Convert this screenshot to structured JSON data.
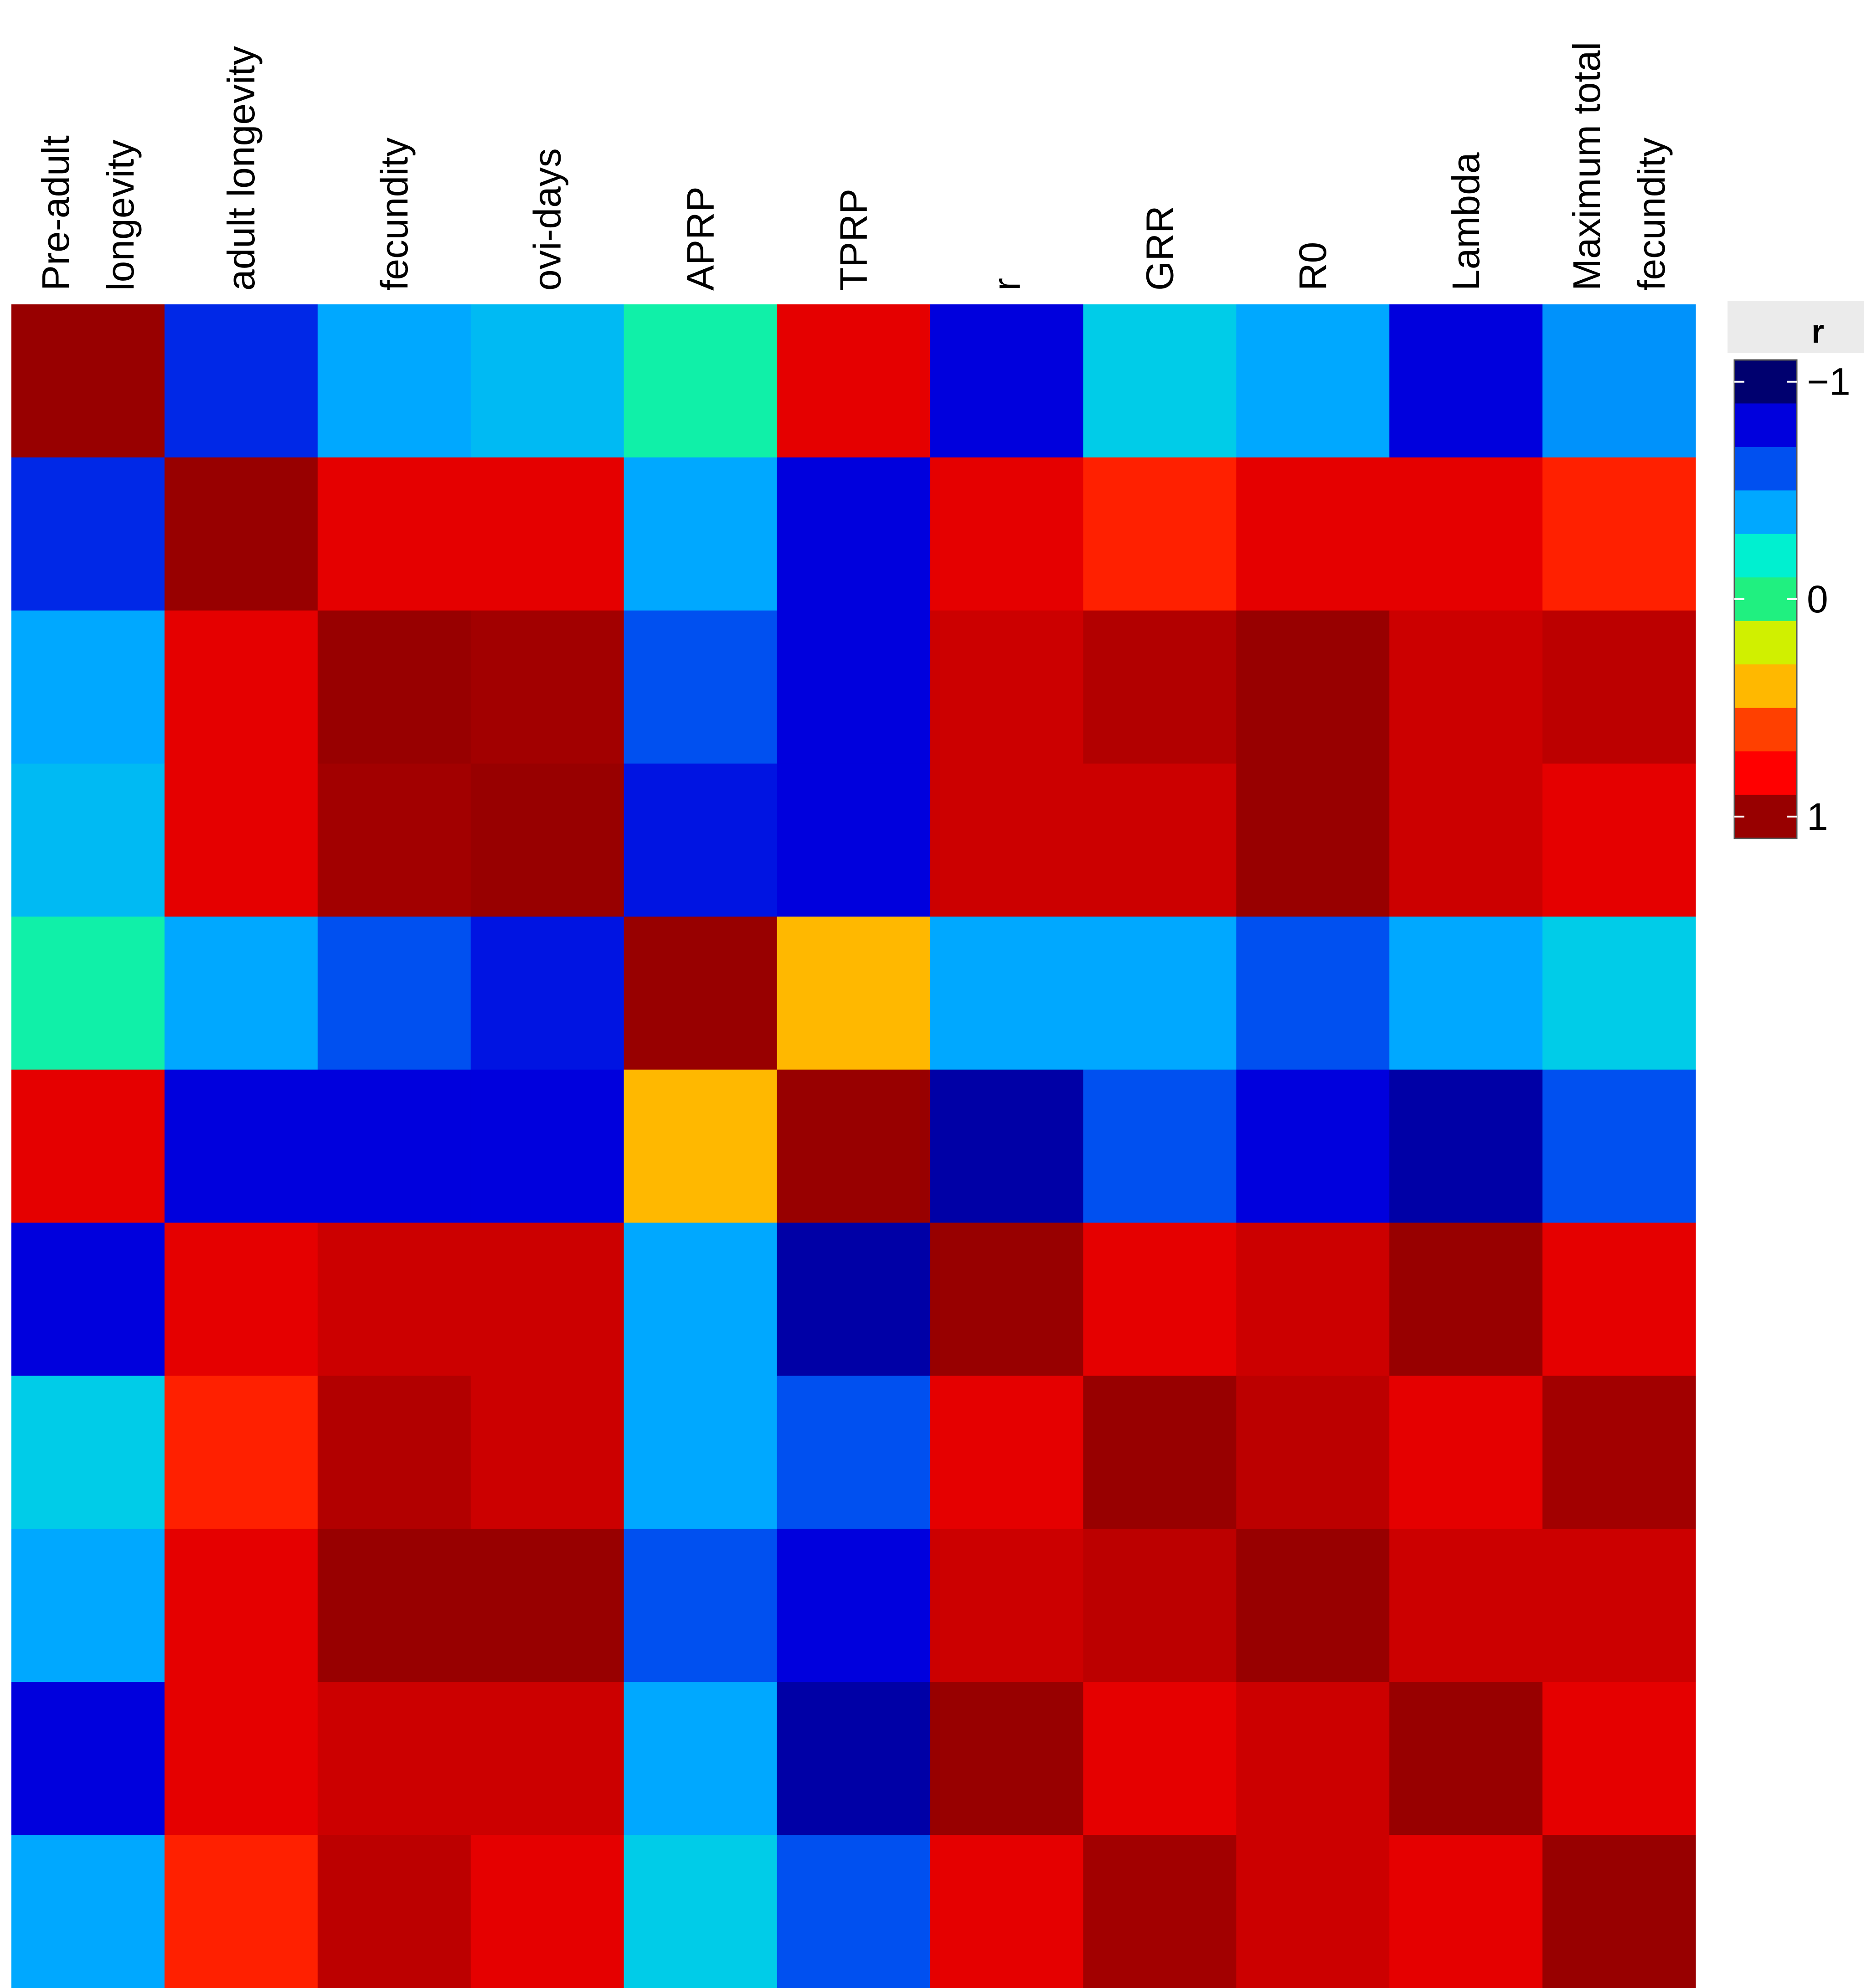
{
  "chart_data": {
    "type": "heatmap",
    "title": "",
    "xlabel": "",
    "ylabel": "",
    "columns": [
      [
        "Pre-adult",
        "longevity"
      ],
      [
        "adult longevity"
      ],
      [
        "fecundity"
      ],
      [
        "ovi-days"
      ],
      [
        "APRP"
      ],
      [
        "TPRP"
      ],
      [
        "r"
      ],
      [
        "GRR"
      ],
      [
        "R0"
      ],
      [
        "Lambda"
      ],
      [
        "Maximum total",
        "fecundity"
      ]
    ],
    "row_labels": [],
    "values": [
      [
        1.0,
        -0.7,
        -0.4,
        -0.35,
        -0.1,
        0.85,
        -0.8,
        -0.3,
        -0.4,
        -0.8,
        -0.45
      ],
      [
        -0.7,
        1.0,
        0.85,
        0.85,
        -0.4,
        -0.8,
        0.85,
        0.7,
        0.85,
        0.85,
        0.7
      ],
      [
        -0.4,
        0.85,
        1.0,
        0.98,
        -0.6,
        -0.8,
        0.9,
        0.95,
        1.0,
        0.9,
        0.93
      ],
      [
        -0.35,
        0.85,
        0.98,
        1.0,
        -0.75,
        -0.8,
        0.9,
        0.9,
        1.0,
        0.9,
        0.85
      ],
      [
        -0.1,
        -0.4,
        -0.6,
        -0.75,
        1.0,
        0.4,
        -0.4,
        -0.4,
        -0.6,
        -0.4,
        -0.3
      ],
      [
        0.85,
        -0.8,
        -0.8,
        -0.8,
        0.4,
        1.0,
        -0.9,
        -0.6,
        -0.8,
        -0.9,
        -0.6
      ],
      [
        -0.8,
        0.85,
        0.9,
        0.9,
        -0.4,
        -0.9,
        1.0,
        0.85,
        0.9,
        1.0,
        0.85
      ],
      [
        -0.3,
        0.7,
        0.95,
        0.9,
        -0.4,
        -0.6,
        0.85,
        1.0,
        0.93,
        0.85,
        0.98
      ],
      [
        -0.4,
        0.85,
        1.0,
        1.0,
        -0.6,
        -0.8,
        0.9,
        0.93,
        1.0,
        0.9,
        0.9
      ],
      [
        -0.8,
        0.85,
        0.9,
        0.9,
        -0.4,
        -0.9,
        1.0,
        0.85,
        0.9,
        1.0,
        0.85
      ],
      [
        -0.4,
        0.7,
        0.93,
        0.85,
        -0.3,
        -0.6,
        0.85,
        0.98,
        0.9,
        0.85,
        1.0
      ]
    ],
    "zlim": [
      -1,
      1
    ],
    "colorbar": {
      "title": "r",
      "ticks": [
        {
          "value": -1,
          "label": "−1"
        },
        {
          "value": 0,
          "label": "0"
        },
        {
          "value": 1,
          "label": "1"
        }
      ],
      "palette": [
        "#00006f",
        "#0000dd",
        "#0050f0",
        "#00a8ff",
        "#00f0d0",
        "#20f080",
        "#d0f000",
        "#ffb800",
        "#ff4000",
        "#ff0000",
        "#980000"
      ]
    },
    "legend": "right"
  }
}
